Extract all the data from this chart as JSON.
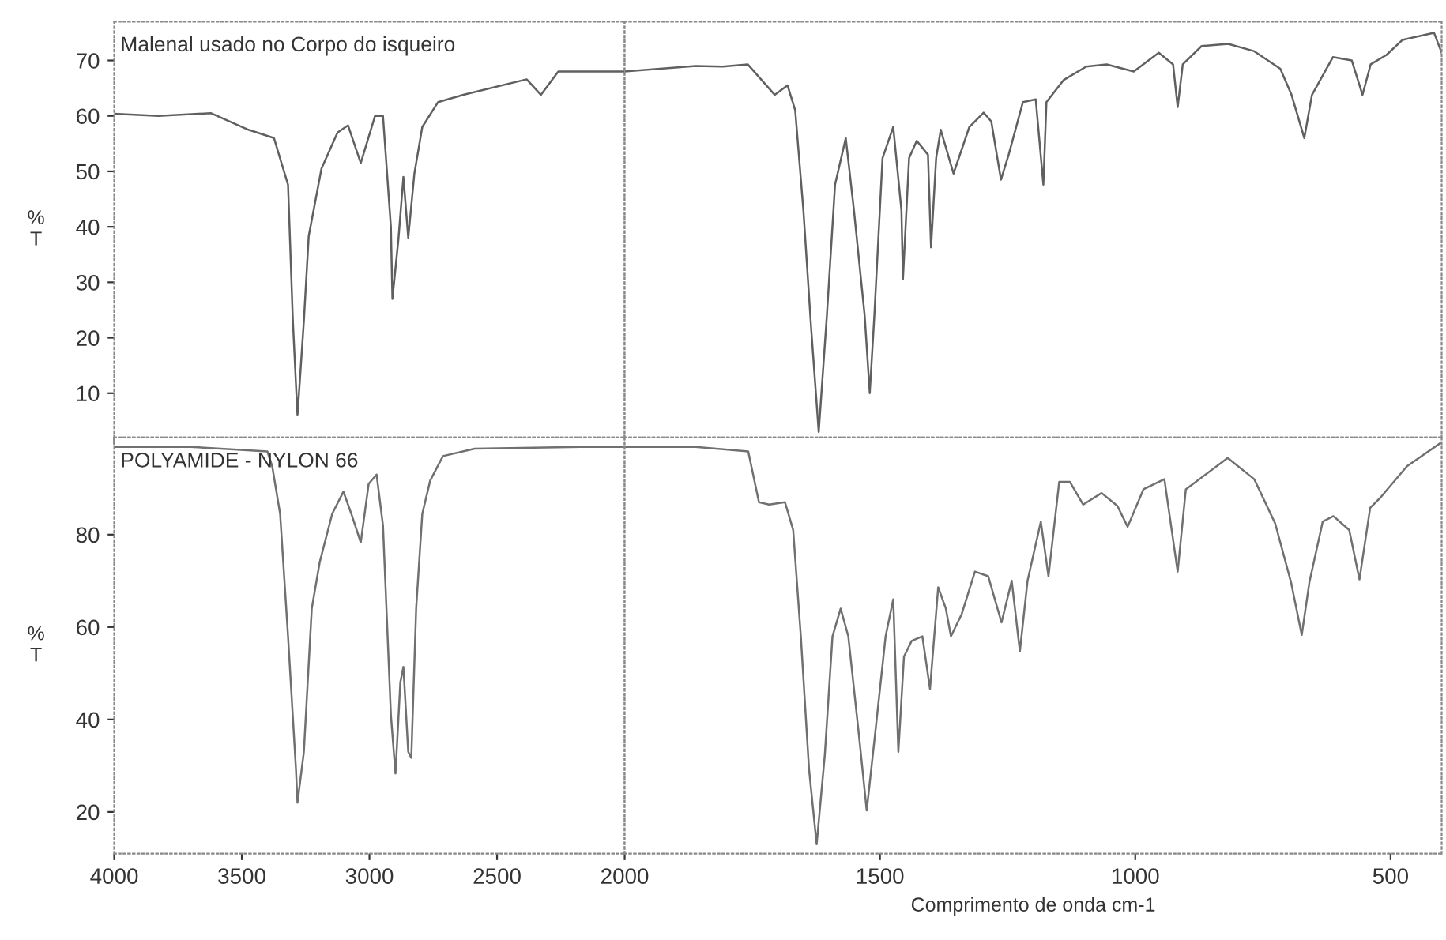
{
  "chart_data": [
    {
      "type": "line",
      "annotations": [
        "Malenal usado no Corpo do isqueiro"
      ],
      "ylabel": "%\nT",
      "tick_labels": "y",
      "xlim": [
        4000,
        2000
      ],
      "xticks": [
        4000,
        3500,
        3000,
        2500,
        2000
      ],
      "ylim": [
        2,
        77
      ],
      "yticks": [
        10,
        20,
        30,
        40,
        50,
        60,
        70
      ],
      "x": [
        4000,
        3827,
        3622,
        3474,
        3374,
        3319,
        3300,
        3282,
        3257,
        3238,
        3188,
        3125,
        3084,
        3034,
        2978,
        2947,
        2916,
        2910,
        2886,
        2867,
        2848,
        2824,
        2793,
        2731,
        2632,
        2384,
        2328,
        2260,
        2000
      ],
      "series": [
        {
          "color": "#606060",
          "values": [
            60.4,
            60,
            60.5,
            57.5,
            56,
            47.6,
            23,
            6,
            23,
            38.3,
            50.5,
            57,
            58.3,
            51.5,
            60,
            60,
            40,
            27,
            38,
            49,
            38,
            49.6,
            58,
            62.5,
            63.8,
            66.6,
            63.8,
            68,
            68
          ]
        }
      ]
    },
    {
      "type": "line",
      "tick_labels": false,
      "xlim": [
        2000,
        400
      ],
      "xticks": [
        1500,
        1000,
        500
      ],
      "ylim": [
        2,
        77
      ],
      "yticks": [
        10,
        20,
        30,
        40,
        50,
        60,
        70
      ],
      "x": [
        2000,
        1861,
        1808,
        1759,
        1706,
        1681,
        1666,
        1650,
        1635,
        1620,
        1604,
        1588,
        1567,
        1551,
        1530,
        1520,
        1511,
        1495,
        1474,
        1458,
        1455,
        1443,
        1428,
        1406,
        1400,
        1390,
        1381,
        1356,
        1325,
        1297,
        1282,
        1263,
        1248,
        1220,
        1195,
        1180,
        1174,
        1140,
        1096,
        1056,
        1003,
        954,
        926,
        917,
        907,
        870,
        818,
        768,
        716,
        694,
        669,
        654,
        613,
        576,
        555,
        539,
        508,
        477,
        415,
        400
      ],
      "series": [
        {
          "color": "#606060",
          "values": [
            68,
            69,
            68.9,
            69.3,
            63.8,
            65.5,
            61,
            43,
            22,
            3,
            24,
            47.6,
            56,
            43,
            24,
            10,
            24,
            52.4,
            58,
            43,
            30.6,
            52.4,
            55.5,
            53,
            36.3,
            52.4,
            57.5,
            49.6,
            58,
            60.6,
            59,
            48.5,
            53,
            62.5,
            63,
            47.6,
            62.5,
            66.5,
            68.9,
            69.3,
            68,
            71.4,
            69.3,
            61.6,
            69.3,
            72.6,
            73,
            71.7,
            68.5,
            63.8,
            56,
            63.8,
            70.6,
            70,
            63.8,
            69.3,
            71,
            73.7,
            75,
            71.4
          ]
        }
      ]
    },
    {
      "type": "line",
      "annotations": [
        "POLYAMIDE - NYLON 66"
      ],
      "ylabel": "%\nT",
      "xlim": [
        4000,
        2000
      ],
      "xticks": [
        4000,
        3500,
        3000,
        2500,
        2000
      ],
      "ylim": [
        11,
        101
      ],
      "yticks": [
        20,
        40,
        60,
        80
      ],
      "x": [
        4000,
        3700,
        3400,
        3381,
        3350,
        3319,
        3288,
        3282,
        3257,
        3226,
        3195,
        3146,
        3102,
        3071,
        3034,
        3003,
        2972,
        2947,
        2916,
        2898,
        2879,
        2867,
        2848,
        2836,
        2817,
        2793,
        2762,
        2712,
        2588,
        2173,
        2000
      ],
      "series": [
        {
          "color": "#707070",
          "values": [
            99,
            99,
            98,
            94.8,
            84.5,
            58,
            29.3,
            22,
            33,
            64,
            74,
            84.5,
            89.3,
            84.5,
            78.3,
            91,
            93,
            82,
            41,
            28.3,
            48,
            51.4,
            33,
            31.7,
            64,
            84.5,
            91.7,
            97,
            98.6,
            99,
            99
          ]
        }
      ]
    },
    {
      "type": "line",
      "xlabel": "Comprimento de onda cm-1",
      "tick_labels": "x",
      "xlim": [
        2000,
        400
      ],
      "xticks": [
        1500,
        1000,
        500
      ],
      "ylim": [
        11,
        101
      ],
      "yticks": [
        20,
        40,
        60,
        80
      ],
      "x": [
        2000,
        1861,
        1758,
        1737,
        1717,
        1686,
        1670,
        1655,
        1639,
        1624,
        1608,
        1593,
        1577,
        1562,
        1541,
        1526,
        1510,
        1489,
        1474,
        1464,
        1453,
        1438,
        1417,
        1402,
        1386,
        1371,
        1361,
        1340,
        1314,
        1288,
        1262,
        1242,
        1226,
        1211,
        1185,
        1170,
        1149,
        1128,
        1102,
        1066,
        1035,
        1015,
        984,
        943,
        917,
        901,
        819,
        767,
        726,
        695,
        674,
        659,
        633,
        612,
        581,
        561,
        540,
        520,
        468,
        400
      ],
      "series": [
        {
          "color": "#707070",
          "values": [
            99,
            99,
            98,
            87,
            86.5,
            87,
            81,
            58,
            29.3,
            13,
            32.4,
            58,
            64,
            58,
            36.4,
            20.3,
            36.4,
            58,
            66,
            33,
            53.6,
            57,
            58,
            46.6,
            68.6,
            64,
            58,
            62.8,
            72,
            71,
            61,
            70,
            54.8,
            70,
            82.8,
            71,
            91.4,
            91.4,
            86.5,
            89,
            86.2,
            81.7,
            89.8,
            92,
            72,
            89.8,
            96.6,
            92,
            82.4,
            69.7,
            58.3,
            69.7,
            82.8,
            84,
            81,
            70.3,
            85.8,
            88,
            94.8,
            100
          ]
        }
      ]
    }
  ]
}
